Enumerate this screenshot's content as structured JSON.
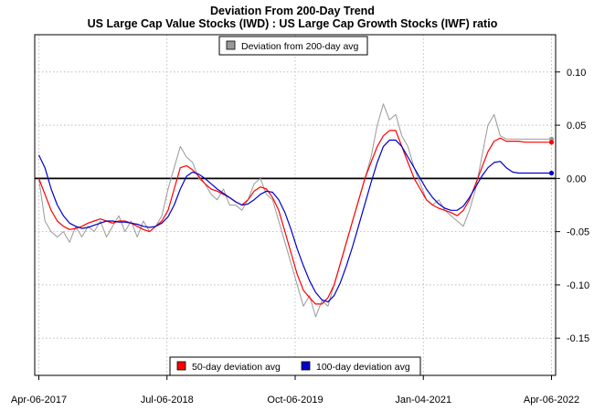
{
  "chart_data": {
    "type": "line",
    "title": "Deviation From 200-Day Trend",
    "subtitle": "US Large Cap Value Stocks (IWD) : US Large Cap Growth Stocks (IWF) ratio",
    "x_tick_labels": [
      "Apr-06-2017",
      "Jul-06-2018",
      "Oct-06-2019",
      "Jan-04-2021",
      "Apr-06-2022"
    ],
    "x_tick_years": [
      2017.26,
      2018.51,
      2019.76,
      2021.01,
      2022.26
    ],
    "y_tick_labels": [
      "0.10",
      "0.05",
      "0.00",
      "-0.05",
      "-0.10",
      "-0.15"
    ],
    "y_ticks": [
      0.1,
      0.05,
      0.0,
      -0.05,
      -0.1,
      -0.15
    ],
    "xlim": [
      2017.22,
      2022.3
    ],
    "ylim": [
      -0.185,
      0.135
    ],
    "reference_line": 0,
    "grid": true,
    "legend_top": {
      "position": "top-center",
      "entries": [
        {
          "name": "Deviation from 200-day avg",
          "color": "#999999"
        }
      ]
    },
    "legend_bottom": {
      "position": "bottom-center",
      "entries": [
        {
          "name": "50-day deviation avg",
          "color": "#ff0000"
        },
        {
          "name": "100-day deviation avg",
          "color": "#0000cc"
        }
      ]
    },
    "series": [
      {
        "name": "Deviation from 200-day avg",
        "color": "#999999",
        "x": [
          2017.26,
          2017.32,
          2017.38,
          2017.44,
          2017.5,
          2017.56,
          2017.62,
          2017.68,
          2017.74,
          2017.8,
          2017.86,
          2017.92,
          2017.98,
          2018.04,
          2018.1,
          2018.16,
          2018.22,
          2018.28,
          2018.34,
          2018.4,
          2018.46,
          2018.52,
          2018.58,
          2018.64,
          2018.7,
          2018.76,
          2018.82,
          2018.88,
          2018.94,
          2019.0,
          2019.06,
          2019.12,
          2019.18,
          2019.24,
          2019.3,
          2019.36,
          2019.42,
          2019.48,
          2019.54,
          2019.6,
          2019.66,
          2019.72,
          2019.78,
          2019.84,
          2019.9,
          2019.96,
          2020.02,
          2020.08,
          2020.14,
          2020.2,
          2020.26,
          2020.32,
          2020.38,
          2020.44,
          2020.5,
          2020.56,
          2020.62,
          2020.68,
          2020.74,
          2020.8,
          2020.86,
          2020.92,
          2020.98,
          2021.04,
          2021.1,
          2021.16,
          2021.22,
          2021.28,
          2021.34,
          2021.4,
          2021.46,
          2021.52,
          2021.58,
          2021.64,
          2021.7,
          2021.76,
          2021.82,
          2021.88,
          2021.94,
          2022.0,
          2022.06,
          2022.12,
          2022.18,
          2022.24,
          2022.26
        ],
        "y": [
          0.0,
          -0.04,
          -0.05,
          -0.055,
          -0.05,
          -0.06,
          -0.045,
          -0.055,
          -0.045,
          -0.05,
          -0.04,
          -0.055,
          -0.045,
          -0.035,
          -0.05,
          -0.04,
          -0.055,
          -0.04,
          -0.05,
          -0.045,
          -0.035,
          -0.01,
          0.01,
          0.03,
          0.02,
          0.015,
          0.0,
          -0.005,
          -0.015,
          -0.02,
          -0.01,
          -0.025,
          -0.025,
          -0.03,
          -0.02,
          -0.005,
          0.0,
          -0.015,
          -0.02,
          -0.04,
          -0.06,
          -0.08,
          -0.1,
          -0.12,
          -0.11,
          -0.13,
          -0.115,
          -0.12,
          -0.1,
          -0.08,
          -0.06,
          -0.04,
          -0.02,
          0.0,
          0.02,
          0.05,
          0.07,
          0.055,
          0.06,
          0.04,
          0.03,
          0.01,
          -0.005,
          -0.02,
          -0.025,
          -0.02,
          -0.03,
          -0.035,
          -0.04,
          -0.045,
          -0.03,
          -0.01,
          0.02,
          0.05,
          0.06,
          0.04,
          0.037,
          0.037,
          0.037,
          0.037,
          0.037,
          0.037,
          0.037,
          0.037,
          0.037
        ]
      },
      {
        "name": "50-day deviation avg",
        "color": "#ff0000",
        "x": [
          2017.26,
          2017.32,
          2017.38,
          2017.44,
          2017.5,
          2017.56,
          2017.62,
          2017.68,
          2017.74,
          2017.8,
          2017.86,
          2017.92,
          2017.98,
          2018.04,
          2018.1,
          2018.16,
          2018.22,
          2018.28,
          2018.34,
          2018.4,
          2018.46,
          2018.52,
          2018.58,
          2018.64,
          2018.7,
          2018.76,
          2018.82,
          2018.88,
          2018.94,
          2019.0,
          2019.06,
          2019.12,
          2019.18,
          2019.24,
          2019.3,
          2019.36,
          2019.42,
          2019.48,
          2019.54,
          2019.6,
          2019.66,
          2019.72,
          2019.78,
          2019.84,
          2019.9,
          2019.96,
          2020.02,
          2020.08,
          2020.14,
          2020.2,
          2020.26,
          2020.32,
          2020.38,
          2020.44,
          2020.5,
          2020.56,
          2020.62,
          2020.68,
          2020.74,
          2020.8,
          2020.86,
          2020.92,
          2020.98,
          2021.04,
          2021.1,
          2021.16,
          2021.22,
          2021.28,
          2021.34,
          2021.4,
          2021.46,
          2021.52,
          2021.58,
          2021.64,
          2021.7,
          2021.76,
          2021.82,
          2021.88,
          2021.94,
          2022.0,
          2022.06,
          2022.12,
          2022.18,
          2022.24,
          2022.26
        ],
        "y": [
          0.0,
          -0.015,
          -0.03,
          -0.04,
          -0.045,
          -0.048,
          -0.047,
          -0.045,
          -0.042,
          -0.04,
          -0.038,
          -0.04,
          -0.042,
          -0.04,
          -0.04,
          -0.042,
          -0.045,
          -0.048,
          -0.05,
          -0.045,
          -0.04,
          -0.03,
          -0.01,
          0.01,
          0.012,
          0.008,
          0.002,
          -0.005,
          -0.01,
          -0.012,
          -0.015,
          -0.018,
          -0.022,
          -0.025,
          -0.02,
          -0.012,
          -0.008,
          -0.01,
          -0.018,
          -0.03,
          -0.05,
          -0.07,
          -0.09,
          -0.105,
          -0.112,
          -0.118,
          -0.118,
          -0.112,
          -0.1,
          -0.08,
          -0.06,
          -0.04,
          -0.02,
          0.0,
          0.015,
          0.03,
          0.04,
          0.045,
          0.045,
          0.03,
          0.015,
          0.0,
          -0.01,
          -0.02,
          -0.025,
          -0.028,
          -0.03,
          -0.032,
          -0.035,
          -0.03,
          -0.02,
          -0.005,
          0.01,
          0.025,
          0.035,
          0.038,
          0.035,
          0.035,
          0.035,
          0.034,
          0.034,
          0.034,
          0.034,
          0.034,
          0.034
        ]
      },
      {
        "name": "100-day deviation avg",
        "color": "#0000cc",
        "x": [
          2017.26,
          2017.32,
          2017.38,
          2017.44,
          2017.5,
          2017.56,
          2017.62,
          2017.68,
          2017.74,
          2017.8,
          2017.86,
          2017.92,
          2017.98,
          2018.04,
          2018.1,
          2018.16,
          2018.22,
          2018.28,
          2018.34,
          2018.4,
          2018.46,
          2018.52,
          2018.58,
          2018.64,
          2018.7,
          2018.76,
          2018.82,
          2018.88,
          2018.94,
          2019.0,
          2019.06,
          2019.12,
          2019.18,
          2019.24,
          2019.3,
          2019.36,
          2019.42,
          2019.48,
          2019.54,
          2019.6,
          2019.66,
          2019.72,
          2019.78,
          2019.84,
          2019.9,
          2019.96,
          2020.02,
          2020.08,
          2020.14,
          2020.2,
          2020.26,
          2020.32,
          2020.38,
          2020.44,
          2020.5,
          2020.56,
          2020.62,
          2020.68,
          2020.74,
          2020.8,
          2020.86,
          2020.92,
          2020.98,
          2021.04,
          2021.1,
          2021.16,
          2021.22,
          2021.28,
          2021.34,
          2021.4,
          2021.46,
          2021.52,
          2021.58,
          2021.64,
          2021.7,
          2021.76,
          2021.82,
          2021.88,
          2021.94,
          2022.0,
          2022.06,
          2022.12,
          2022.18,
          2022.24,
          2022.26
        ],
        "y": [
          0.022,
          0.01,
          -0.01,
          -0.025,
          -0.035,
          -0.042,
          -0.045,
          -0.047,
          -0.046,
          -0.044,
          -0.042,
          -0.04,
          -0.04,
          -0.041,
          -0.041,
          -0.042,
          -0.043,
          -0.045,
          -0.046,
          -0.045,
          -0.042,
          -0.036,
          -0.025,
          -0.01,
          0.002,
          0.006,
          0.004,
          0.0,
          -0.005,
          -0.01,
          -0.014,
          -0.018,
          -0.022,
          -0.025,
          -0.024,
          -0.02,
          -0.015,
          -0.012,
          -0.013,
          -0.02,
          -0.032,
          -0.048,
          -0.066,
          -0.082,
          -0.096,
          -0.107,
          -0.114,
          -0.116,
          -0.11,
          -0.098,
          -0.082,
          -0.064,
          -0.044,
          -0.024,
          -0.004,
          0.015,
          0.03,
          0.036,
          0.036,
          0.03,
          0.02,
          0.01,
          0.0,
          -0.01,
          -0.018,
          -0.024,
          -0.028,
          -0.03,
          -0.03,
          -0.026,
          -0.018,
          -0.008,
          0.002,
          0.01,
          0.015,
          0.016,
          0.01,
          0.006,
          0.005,
          0.005,
          0.005,
          0.005,
          0.005,
          0.005,
          0.005
        ]
      }
    ]
  }
}
